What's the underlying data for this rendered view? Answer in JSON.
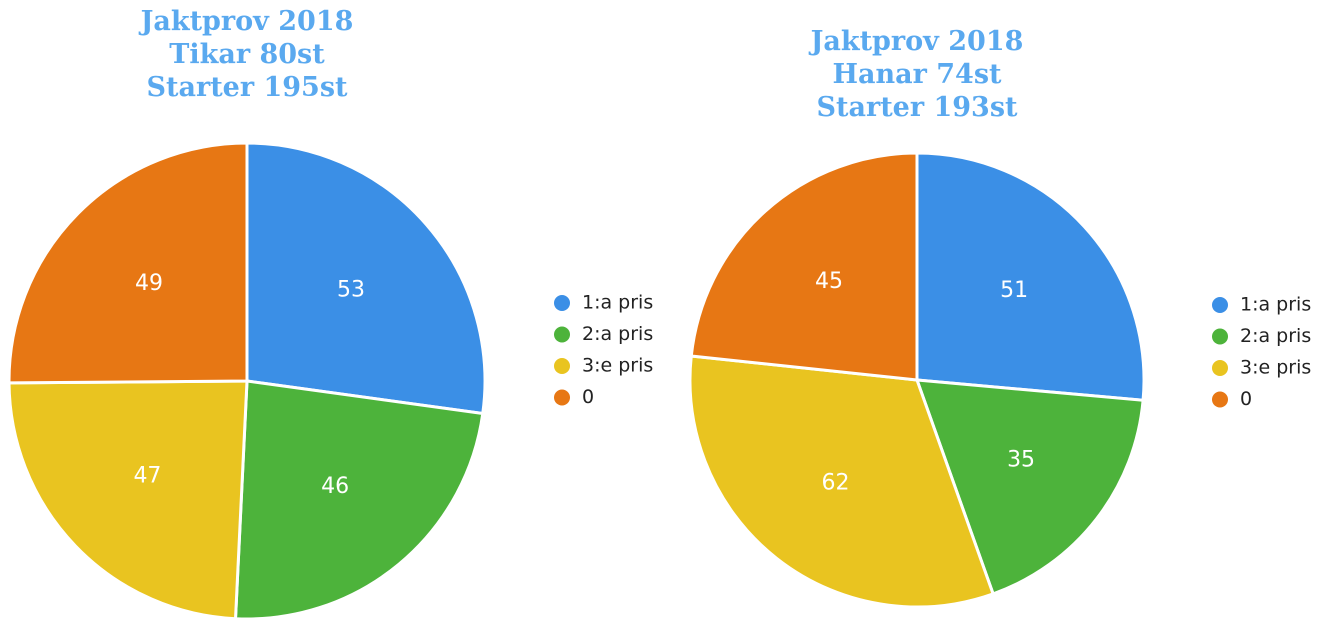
{
  "chart_data": [
    {
      "type": "pie",
      "title": [
        "Jaktprov 2018",
        "Tikar 80st",
        "Starter 195st"
      ],
      "categories": [
        "1:a pris",
        "2:a pris",
        "3:e pris",
        "0"
      ],
      "values": [
        53,
        46,
        47,
        49
      ],
      "colors": [
        "#3b8fe6",
        "#4db33b",
        "#e9c420",
        "#e77714"
      ]
    },
    {
      "type": "pie",
      "title": [
        "Jaktprov 2018",
        "Hanar 74st",
        "Starter 193st"
      ],
      "categories": [
        "1:a pris",
        "2:a pris",
        "3:e pris",
        "0"
      ],
      "values": [
        51,
        35,
        62,
        45
      ],
      "colors": [
        "#3b8fe6",
        "#4db33b",
        "#e9c420",
        "#e77714"
      ]
    }
  ]
}
